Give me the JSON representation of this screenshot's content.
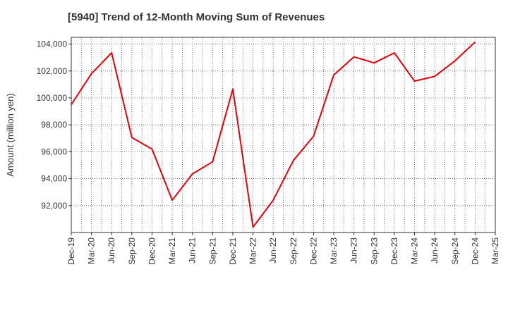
{
  "chart_data": {
    "type": "line",
    "title": "[5940]  Trend of 12-Month Moving Sum of Revenues",
    "xlabel": "",
    "ylabel": "Amount (million yen)",
    "ylim": [
      90000,
      104500
    ],
    "yticks": [
      92000,
      94000,
      96000,
      98000,
      100000,
      102000,
      104000
    ],
    "ytick_labels": [
      "92,000",
      "94,000",
      "96,000",
      "98,000",
      "100,000",
      "102,000",
      "104,000"
    ],
    "grid": true,
    "categories": [
      "Dec-19",
      "Mar-20",
      "Jun-20",
      "Sep-20",
      "Dec-20",
      "Mar-21",
      "Jun-21",
      "Sep-21",
      "Dec-21",
      "Mar-22",
      "Jun-22",
      "Sep-22",
      "Dec-22",
      "Mar-23",
      "Jun-23",
      "Sep-23",
      "Dec-23",
      "Mar-24",
      "Jun-24",
      "Sep-24",
      "Dec-24",
      "Mar-25"
    ],
    "series": [
      {
        "name": "",
        "color": "#e8000b",
        "values": [
          99500,
          101800,
          103350,
          97050,
          96200,
          92400,
          94350,
          95250,
          100650,
          90400,
          92400,
          95350,
          97150,
          101700,
          103050,
          102600,
          103350,
          101250,
          101600,
          102750,
          104150,
          null
        ]
      }
    ]
  }
}
